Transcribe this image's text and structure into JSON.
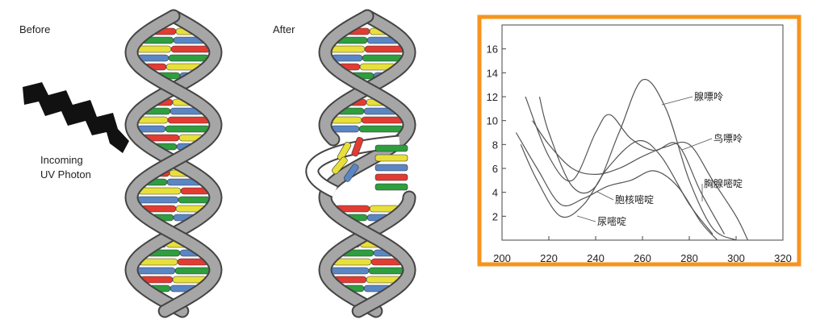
{
  "diagram": {
    "before_label": "Before",
    "after_label": "After",
    "photon_label": [
      "Incoming",
      "UV Photon"
    ]
  },
  "chart_data": {
    "type": "line",
    "xlim": [
      200,
      320
    ],
    "xticks": [
      200,
      220,
      240,
      260,
      280,
      300,
      320
    ],
    "ylim": [
      0,
      18
    ],
    "yticks": [
      2,
      4,
      6,
      8,
      10,
      12,
      14,
      16
    ],
    "series": [
      {
        "name": "腺嘌呤",
        "color": "#555555",
        "x": [
          216,
          220,
          230,
          240,
          250,
          260,
          270,
          280,
          290,
          300
        ],
        "values": [
          12,
          9,
          4.5,
          4.5,
          9,
          13.4,
          11,
          5,
          1,
          0
        ]
      },
      {
        "name": "鸟嘌呤",
        "color": "#555555",
        "x": [
          210,
          220,
          230,
          240,
          246,
          255,
          265,
          275,
          285,
          295
        ],
        "values": [
          12,
          7,
          5,
          9,
          10.5,
          8.5,
          7.5,
          8,
          4,
          0.5
        ]
      },
      {
        "name": "胸腺嘧啶",
        "color": "#555555",
        "x": [
          213,
          220,
          230,
          240,
          250,
          260,
          270,
          280,
          290,
          300,
          305
        ],
        "values": [
          10,
          8,
          6,
          5.5,
          6,
          7,
          7.8,
          8,
          5,
          2,
          0
        ]
      },
      {
        "name": "胞核嘧啶",
        "color": "#555555",
        "x": [
          206,
          215,
          225,
          235,
          245,
          255,
          265,
          275,
          285,
          292
        ],
        "values": [
          9,
          6,
          3,
          3.5,
          4.5,
          5,
          5.8,
          4.5,
          1.5,
          0
        ]
      },
      {
        "name": "尿嘧啶",
        "color": "#555555",
        "x": [
          208,
          215,
          225,
          235,
          245,
          258,
          268,
          280,
          290
        ],
        "values": [
          8,
          5,
          2,
          3,
          6,
          8.3,
          7,
          3,
          0.5
        ]
      }
    ]
  }
}
